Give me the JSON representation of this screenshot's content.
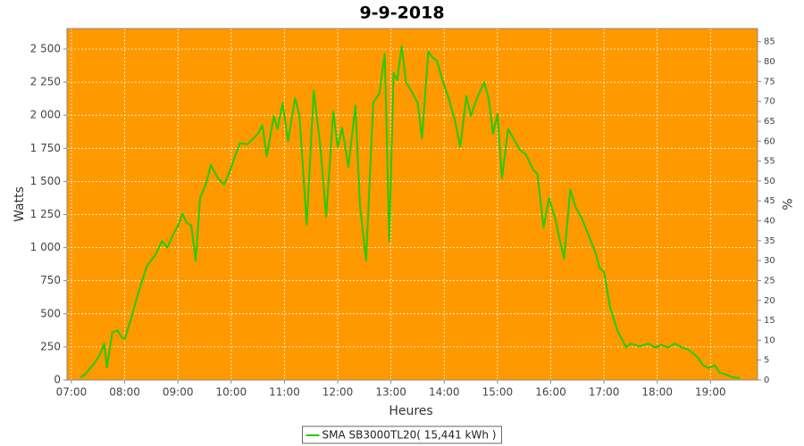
{
  "chart_data": {
    "type": "line",
    "title": "9-9-2018",
    "x_label": "Heures",
    "y_label": "Watts",
    "y2_label": "%",
    "background": "#ff9900",
    "grid": true,
    "xlim": [
      "06:55",
      "19:53"
    ],
    "xticks": [
      "07:00",
      "08:00",
      "09:00",
      "10:00",
      "11:00",
      "12:00",
      "13:00",
      "14:00",
      "15:00",
      "16:00",
      "17:00",
      "18:00",
      "19:00"
    ],
    "ylim": [
      0,
      2655
    ],
    "yticks": [
      0,
      250,
      500,
      750,
      {
        "value": 1000,
        "label": "1 000"
      },
      {
        "value": 1250,
        "label": "1 250"
      },
      {
        "value": 1500,
        "label": "1 500"
      },
      {
        "value": 1750,
        "label": "1 750"
      },
      {
        "value": 2000,
        "label": "2 000"
      },
      {
        "value": 2250,
        "label": "2 250"
      },
      {
        "value": 2500,
        "label": "2 500"
      }
    ],
    "y2lim": [
      0,
      88.3
    ],
    "y2ticks": [
      0,
      5,
      10,
      15,
      20,
      25,
      30,
      35,
      40,
      45,
      50,
      55,
      60,
      65,
      70,
      75,
      80,
      85
    ],
    "x": [
      "07:10",
      "07:15",
      "07:25",
      "07:32",
      "07:37",
      "07:40",
      "07:46",
      "07:52",
      "07:57",
      "08:00",
      "08:08",
      "08:15",
      "08:25",
      "08:35",
      "08:42",
      "08:48",
      "08:55",
      "09:00",
      "09:05",
      "09:10",
      "09:15",
      "09:20",
      "09:25",
      "09:32",
      "09:37",
      "09:45",
      "09:52",
      "10:00",
      "10:05",
      "10:10",
      "10:18",
      "10:25",
      "10:30",
      "10:35",
      "10:40",
      "10:48",
      "10:52",
      "10:58",
      "11:04",
      "11:12",
      "11:17",
      "11:25",
      "11:33",
      "11:40",
      "11:47",
      "11:55",
      "12:00",
      "12:05",
      "12:12",
      "12:20",
      "12:25",
      "12:32",
      "12:40",
      "12:47",
      "12:53",
      "12:58",
      "13:03",
      "13:07",
      "13:12",
      "13:17",
      "13:22",
      "13:30",
      "13:35",
      "13:42",
      "13:47",
      "13:52",
      "13:58",
      "14:05",
      "14:12",
      "14:18",
      "14:25",
      "14:30",
      "14:37",
      "14:45",
      "14:50",
      "14:55",
      "15:00",
      "15:05",
      "15:12",
      "15:18",
      "15:25",
      "15:32",
      "15:40",
      "15:45",
      "15:52",
      "15:58",
      "16:05",
      "16:10",
      "16:15",
      "16:22",
      "16:28",
      "16:35",
      "16:42",
      "16:50",
      "16:55",
      "17:00",
      "17:07",
      "17:15",
      "17:25",
      "17:30",
      "17:40",
      "17:50",
      "17:58",
      "18:05",
      "18:12",
      "18:20",
      "18:28",
      "18:35",
      "18:45",
      "18:52",
      "18:58",
      "19:05",
      "19:10",
      "19:18",
      "19:25",
      "19:33"
    ],
    "series": [
      {
        "name": "SMA SB3000TL20( 15,441 kWh )",
        "color": "#22cc00",
        "values": [
          20,
          40,
          120,
          190,
          275,
          95,
          360,
          375,
          320,
          310,
          480,
          650,
          860,
          950,
          1050,
          1000,
          1105,
          1165,
          1255,
          1185,
          1170,
          900,
          1375,
          1490,
          1625,
          1525,
          1475,
          1605,
          1705,
          1790,
          1780,
          1825,
          1860,
          1925,
          1690,
          1995,
          1895,
          2090,
          1805,
          2130,
          1995,
          1170,
          2185,
          1790,
          1235,
          2030,
          1760,
          1905,
          1610,
          2075,
          1320,
          900,
          2095,
          2165,
          2465,
          1050,
          2320,
          2265,
          2520,
          2250,
          2195,
          2095,
          1825,
          2480,
          2435,
          2410,
          2265,
          2130,
          1960,
          1760,
          2145,
          1995,
          2130,
          2250,
          2130,
          1860,
          2010,
          1525,
          1895,
          1825,
          1740,
          1705,
          1590,
          1555,
          1150,
          1375,
          1220,
          1065,
          915,
          1440,
          1305,
          1220,
          1105,
          970,
          850,
          815,
          545,
          375,
          245,
          275,
          255,
          275,
          245,
          265,
          245,
          275,
          245,
          230,
          175,
          110,
          90,
          110,
          55,
          40,
          20,
          15
        ]
      }
    ]
  }
}
